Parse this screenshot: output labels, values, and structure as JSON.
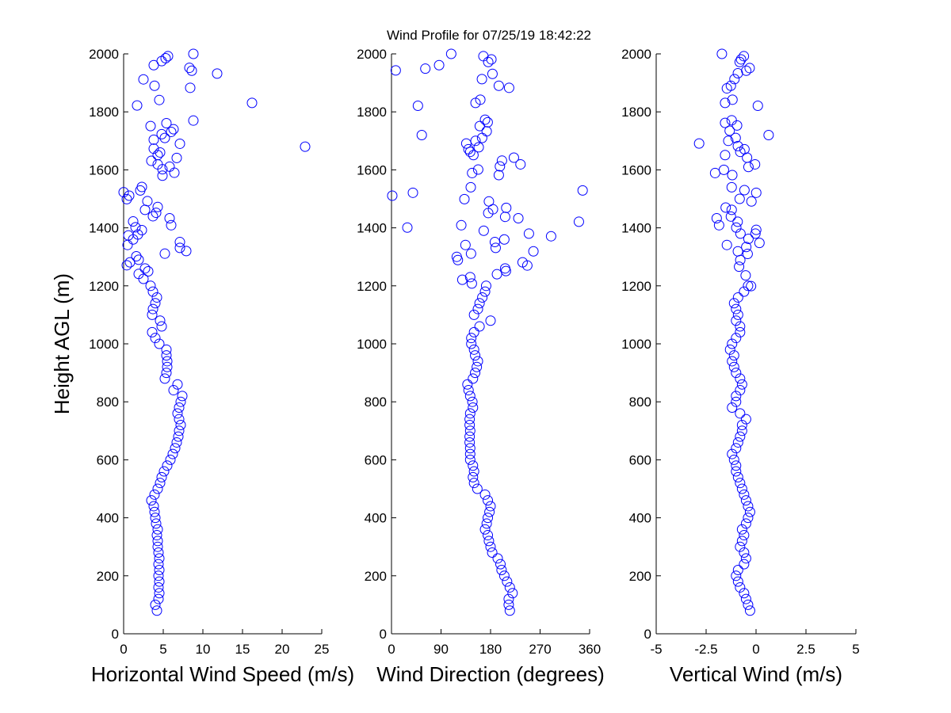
{
  "chart_data": {
    "type": "scatter",
    "title": "Wind Profile for  07/25/19 18:42:22",
    "ylabel": "Height AGL (m)",
    "ylim": [
      0,
      2000
    ],
    "yticks": [
      "0",
      "200",
      "400",
      "600",
      "800",
      "1000",
      "1200",
      "1400",
      "1600",
      "1800",
      "2000"
    ],
    "marker_color": "#0000FF",
    "marker": "open-circle",
    "profile_heights": [
      80,
      100,
      120,
      140,
      160,
      180,
      200,
      220,
      240,
      260,
      280,
      300,
      320,
      340,
      360,
      380,
      400,
      420,
      440,
      460,
      480,
      500,
      520,
      540,
      560,
      580,
      600,
      620,
      640,
      660,
      680,
      700,
      720,
      740,
      760,
      780,
      800,
      820,
      840,
      860,
      880,
      900,
      920,
      940,
      960,
      980,
      1000,
      1020,
      1040,
      1060,
      1080,
      1100,
      1120,
      1140,
      1160,
      1180,
      1200
    ],
    "panels": [
      {
        "name": "horizontal-wind-speed",
        "xlabel": "Horizontal Wind Speed (m/s)",
        "xlim": [
          0,
          25
        ],
        "xticks": [
          "0",
          "5",
          "10",
          "15",
          "20",
          "25"
        ],
        "xtick_values": [
          0,
          5,
          10,
          15,
          20,
          25
        ],
        "profile_values": [
          4.2,
          4.0,
          4.4,
          4.5,
          4.4,
          4.5,
          4.4,
          4.5,
          4.4,
          4.5,
          4.4,
          4.3,
          4.3,
          4.2,
          4.3,
          4.1,
          4.0,
          3.9,
          3.8,
          3.5,
          3.9,
          4.3,
          4.6,
          4.8,
          5.1,
          5.5,
          5.9,
          6.2,
          6.5,
          6.7,
          6.9,
          7.0,
          7.2,
          7.0,
          6.8,
          7.0,
          7.2,
          7.4,
          6.3,
          6.8,
          5.2,
          5.4,
          5.5,
          5.5,
          5.4,
          5.4,
          4.5,
          4.0,
          3.6,
          4.8,
          4.6,
          3.6,
          3.7,
          4.0,
          4.2,
          3.7,
          3.4
        ],
        "scatter_points": [
          [
            8.8,
            2000
          ],
          [
            5.6,
            1992
          ],
          [
            5.3,
            1985
          ],
          [
            4.8,
            1975
          ],
          [
            3.8,
            1961
          ],
          [
            8.3,
            1952
          ],
          [
            8.6,
            1942
          ],
          [
            11.8,
            1932
          ],
          [
            2.5,
            1912
          ],
          [
            3.9,
            1890
          ],
          [
            8.4,
            1883
          ],
          [
            4.5,
            1841
          ],
          [
            1.7,
            1822
          ],
          [
            16.2,
            1831
          ],
          [
            8.8,
            1770
          ],
          [
            5.4,
            1761
          ],
          [
            3.4,
            1751
          ],
          [
            6.3,
            1740
          ],
          [
            6.0,
            1731
          ],
          [
            4.8,
            1723
          ],
          [
            5.2,
            1710
          ],
          [
            7.1,
            1690
          ],
          [
            3.8,
            1704
          ],
          [
            22.9,
            1680
          ],
          [
            3.8,
            1673
          ],
          [
            4.6,
            1660
          ],
          [
            4.3,
            1651
          ],
          [
            6.7,
            1641
          ],
          [
            3.5,
            1631
          ],
          [
            4.3,
            1619
          ],
          [
            5.8,
            1611
          ],
          [
            4.9,
            1602
          ],
          [
            6.4,
            1590
          ],
          [
            4.9,
            1580
          ],
          [
            2.3,
            1541
          ],
          [
            2.1,
            1529
          ],
          [
            0.0,
            1523
          ],
          [
            0.7,
            1511
          ],
          [
            0.4,
            1499
          ],
          [
            3.0,
            1492
          ],
          [
            4.3,
            1472
          ],
          [
            2.7,
            1462
          ],
          [
            4.1,
            1452
          ],
          [
            3.7,
            1440
          ],
          [
            5.8,
            1433
          ],
          [
            6.0,
            1409
          ],
          [
            1.2,
            1422
          ],
          [
            1.5,
            1402
          ],
          [
            2.3,
            1392
          ],
          [
            0.6,
            1374
          ],
          [
            1.8,
            1377
          ],
          [
            1.2,
            1360
          ],
          [
            0.5,
            1341
          ],
          [
            7.1,
            1351
          ],
          [
            7.1,
            1331
          ],
          [
            7.9,
            1320
          ],
          [
            5.2,
            1311
          ],
          [
            1.6,
            1302
          ],
          [
            1.9,
            1290
          ],
          [
            0.8,
            1281
          ],
          [
            0.4,
            1271
          ],
          [
            2.7,
            1260
          ],
          [
            3.1,
            1250
          ],
          [
            1.9,
            1241
          ],
          [
            2.5,
            1224
          ]
        ]
      },
      {
        "name": "wind-direction",
        "xlabel": "Wind Direction (degrees)",
        "xlim": [
          0,
          360
        ],
        "xticks": [
          "0",
          "90",
          "180",
          "270",
          "360"
        ],
        "xtick_values": [
          0,
          90,
          180,
          270,
          360
        ],
        "profile_values": [
          215,
          213,
          213,
          220,
          215,
          210,
          205,
          200,
          198,
          193,
          183,
          180,
          177,
          175,
          170,
          173,
          175,
          178,
          180,
          175,
          170,
          156,
          150,
          148,
          150,
          148,
          143,
          143,
          143,
          142,
          142,
          143,
          142,
          142,
          143,
          148,
          147,
          143,
          140,
          138,
          148,
          152,
          155,
          157,
          152,
          150,
          145,
          145,
          150,
          160,
          180,
          150,
          157,
          160,
          165,
          170,
          172
        ],
        "scatter_points": [
          [
            108.5,
            2000
          ],
          [
            167,
            1992
          ],
          [
            181.5,
            1981
          ],
          [
            175.8,
            1972
          ],
          [
            7.7,
            1943
          ],
          [
            61.5,
            1949
          ],
          [
            86.5,
            1961
          ],
          [
            183.5,
            1931
          ],
          [
            164.3,
            1913
          ],
          [
            195,
            1890
          ],
          [
            213.7,
            1883
          ],
          [
            161.4,
            1842
          ],
          [
            152.7,
            1831
          ],
          [
            48,
            1821
          ],
          [
            170,
            1773
          ],
          [
            174.8,
            1764
          ],
          [
            160.4,
            1751
          ],
          [
            173,
            1733
          ],
          [
            164.7,
            1710
          ],
          [
            55,
            1720
          ],
          [
            135.9,
            1691
          ],
          [
            152.7,
            1700
          ],
          [
            158.5,
            1678
          ],
          [
            139.8,
            1671
          ],
          [
            143,
            1662
          ],
          [
            148.9,
            1651
          ],
          [
            222.4,
            1642
          ],
          [
            200.7,
            1632
          ],
          [
            234.4,
            1619
          ],
          [
            197,
            1612
          ],
          [
            157.5,
            1601
          ],
          [
            146.5,
            1589
          ],
          [
            195,
            1582
          ],
          [
            144,
            1540
          ],
          [
            347.3,
            1529
          ],
          [
            38.9,
            1521
          ],
          [
            1.4,
            1511
          ],
          [
            132.5,
            1499
          ],
          [
            177,
            1491
          ],
          [
            184.4,
            1464
          ],
          [
            208.5,
            1469
          ],
          [
            175.8,
            1451
          ],
          [
            206.5,
            1438
          ],
          [
            230.5,
            1433
          ],
          [
            340.5,
            1421
          ],
          [
            28.8,
            1401
          ],
          [
            126.8,
            1409
          ],
          [
            167.6,
            1390
          ],
          [
            249.7,
            1380
          ],
          [
            290,
            1371
          ],
          [
            205,
            1360
          ],
          [
            187.8,
            1351
          ],
          [
            189.3,
            1331
          ],
          [
            134.4,
            1341
          ],
          [
            257.9,
            1319
          ],
          [
            144.5,
            1311
          ],
          [
            118.6,
            1300
          ],
          [
            120.6,
            1289
          ],
          [
            238.2,
            1281
          ],
          [
            246.8,
            1270
          ],
          [
            206.5,
            1260
          ],
          [
            207.9,
            1251
          ],
          [
            191.6,
            1240
          ],
          [
            128.7,
            1221
          ],
          [
            143,
            1230
          ],
          [
            146,
            1208
          ]
        ]
      },
      {
        "name": "vertical-wind",
        "xlabel": "Vertical Wind (m/s)",
        "xlim": [
          -5,
          5
        ],
        "xticks": [
          "-5",
          "-2.5",
          "0",
          "2.5",
          "5"
        ],
        "xtick_values": [
          -5,
          -2.5,
          0,
          2.5,
          5
        ],
        "profile_values": [
          -0.3,
          -0.4,
          -0.5,
          -0.6,
          -0.8,
          -0.9,
          -1.0,
          -0.9,
          -0.6,
          -0.5,
          -0.6,
          -0.8,
          -0.7,
          -0.6,
          -0.7,
          -0.5,
          -0.4,
          -0.3,
          -0.4,
          -0.5,
          -0.6,
          -0.7,
          -0.8,
          -0.9,
          -1.0,
          -1.0,
          -1.1,
          -1.2,
          -1.0,
          -0.9,
          -0.8,
          -0.7,
          -0.7,
          -0.5,
          -0.8,
          -1.2,
          -1.0,
          -1.0,
          -0.8,
          -0.7,
          -0.8,
          -1.0,
          -1.1,
          -1.2,
          -1.1,
          -1.3,
          -1.2,
          -1.0,
          -0.8,
          -0.8,
          -1.0,
          -0.9,
          -1.0,
          -1.1,
          -0.9,
          -0.6,
          -0.4
        ],
        "scatter_points": [
          [
            -1.71,
            2000
          ],
          [
            -0.61,
            1992
          ],
          [
            -0.75,
            1981
          ],
          [
            -0.82,
            1972
          ],
          [
            -0.32,
            1951
          ],
          [
            -0.49,
            1942
          ],
          [
            -0.91,
            1933
          ],
          [
            -1.08,
            1913
          ],
          [
            -1.26,
            1890
          ],
          [
            -1.46,
            1881
          ],
          [
            -1.18,
            1842
          ],
          [
            -1.55,
            1831
          ],
          [
            0.09,
            1821
          ],
          [
            -1.22,
            1771
          ],
          [
            -1.55,
            1762
          ],
          [
            -0.95,
            1753
          ],
          [
            -1.32,
            1735
          ],
          [
            0.63,
            1720
          ],
          [
            -1.02,
            1710
          ],
          [
            -1.39,
            1700
          ],
          [
            -2.85,
            1691
          ],
          [
            -0.91,
            1682
          ],
          [
            -0.58,
            1671
          ],
          [
            -0.79,
            1662
          ],
          [
            -0.45,
            1642
          ],
          [
            -1.55,
            1651
          ],
          [
            -0.05,
            1619
          ],
          [
            -0.38,
            1610
          ],
          [
            -1.61,
            1600
          ],
          [
            -2.05,
            1589
          ],
          [
            -1.19,
            1582
          ],
          [
            -1.22,
            1540
          ],
          [
            -0.58,
            1530
          ],
          [
            0.01,
            1521
          ],
          [
            -0.82,
            1500
          ],
          [
            -0.23,
            1491
          ],
          [
            -1.52,
            1470
          ],
          [
            -1.22,
            1462
          ],
          [
            -1.26,
            1439
          ],
          [
            -1.97,
            1433
          ],
          [
            -1.85,
            1409
          ],
          [
            -0.92,
            1421
          ],
          [
            -0.99,
            1401
          ],
          [
            -0.78,
            1380
          ],
          [
            0.01,
            1393
          ],
          [
            -0.03,
            1380
          ],
          [
            0.17,
            1348
          ],
          [
            -0.38,
            1362
          ],
          [
            -1.46,
            1341
          ],
          [
            -0.49,
            1334
          ],
          [
            -0.91,
            1319
          ],
          [
            -0.42,
            1310
          ],
          [
            -0.79,
            1289
          ],
          [
            -0.85,
            1266
          ],
          [
            -0.52,
            1236
          ],
          [
            -0.25,
            1199
          ]
        ]
      }
    ]
  }
}
